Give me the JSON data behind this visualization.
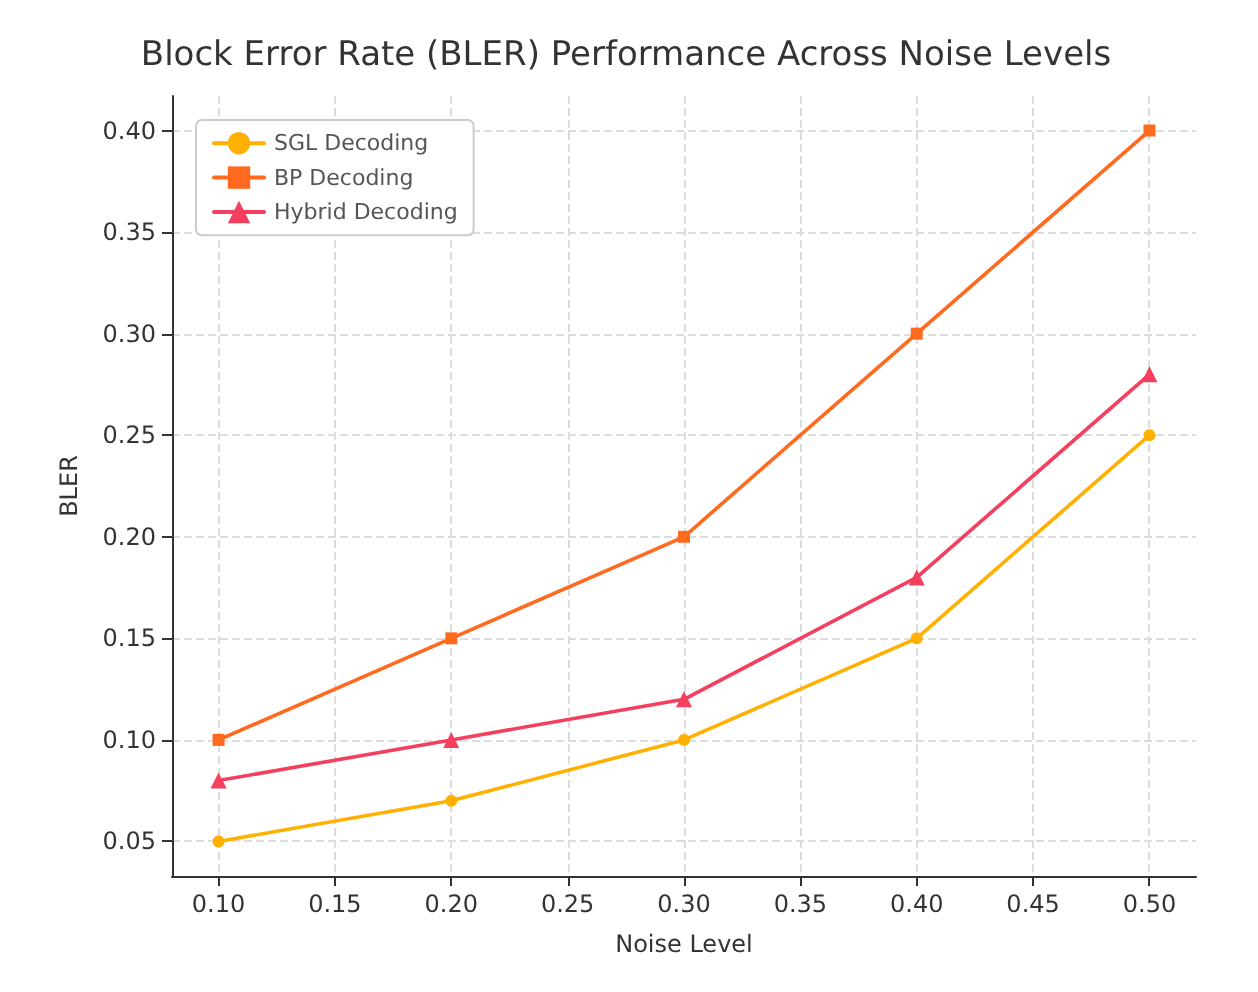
{
  "chart_data": {
    "type": "line",
    "title": "Block Error Rate (BLER) Performance Across Noise Levels",
    "xlabel": "Noise Level",
    "ylabel": "BLER",
    "x": [
      0.1,
      0.2,
      0.3,
      0.4,
      0.5
    ],
    "series": [
      {
        "name": "SGL Decoding",
        "color": "#ffb000",
        "marker": "circle",
        "values": [
          0.05,
          0.07,
          0.1,
          0.15,
          0.25
        ]
      },
      {
        "name": "BP Decoding",
        "color": "#ff6a1f",
        "marker": "square",
        "values": [
          0.1,
          0.15,
          0.2,
          0.3,
          0.4
        ]
      },
      {
        "name": "Hybrid Decoding",
        "color": "#f43f5e",
        "marker": "triangle",
        "values": [
          0.08,
          0.1,
          0.12,
          0.18,
          0.28
        ]
      }
    ],
    "xlim": [
      0.08,
      0.52
    ],
    "xticks": [
      {
        "value": 0.1,
        "label": "0.10"
      },
      {
        "value": 0.15,
        "label": "0.15"
      },
      {
        "value": 0.2,
        "label": "0.20"
      },
      {
        "value": 0.25,
        "label": "0.25"
      },
      {
        "value": 0.3,
        "label": "0.30"
      },
      {
        "value": 0.35,
        "label": "0.35"
      },
      {
        "value": 0.4,
        "label": "0.40"
      },
      {
        "value": 0.45,
        "label": "0.45"
      },
      {
        "value": 0.5,
        "label": "0.50"
      }
    ],
    "ylim": [
      0.033,
      0.417
    ],
    "yticks": [
      {
        "value": 0.05,
        "label": "0.05"
      },
      {
        "value": 0.1,
        "label": "0.10"
      },
      {
        "value": 0.15,
        "label": "0.15"
      },
      {
        "value": 0.2,
        "label": "0.20"
      },
      {
        "value": 0.25,
        "label": "0.25"
      },
      {
        "value": 0.3,
        "label": "0.30"
      },
      {
        "value": 0.35,
        "label": "0.35"
      },
      {
        "value": 0.4,
        "label": "0.40"
      }
    ],
    "grid": true,
    "legend": "top left",
    "line_style": "solid"
  }
}
